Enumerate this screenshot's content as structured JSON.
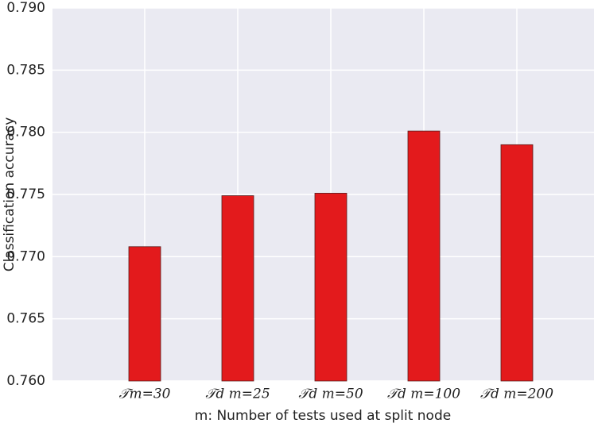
{
  "chart_data": {
    "type": "bar",
    "categories": [
      "𝒯m=30",
      "𝒯d m=25",
      "𝒯d m=50",
      "𝒯d m=100",
      "𝒯d m=200"
    ],
    "values": [
      0.7708,
      0.7749,
      0.7751,
      0.7801,
      0.779
    ],
    "color": "#e31a1c",
    "ylim": [
      0.76,
      0.79
    ],
    "yticks": [
      {
        "value": 0.76,
        "label": "0.760"
      },
      0.765,
      {
        "value": 0.77,
        "label": "0.770"
      },
      0.775,
      {
        "value": 0.78,
        "label": "0.780"
      },
      0.785,
      {
        "value": 0.79,
        "label": "0.790"
      }
    ],
    "xlabel": "m: Number of tests used at split node",
    "ylabel": "Classification accuracy",
    "grid": true
  }
}
